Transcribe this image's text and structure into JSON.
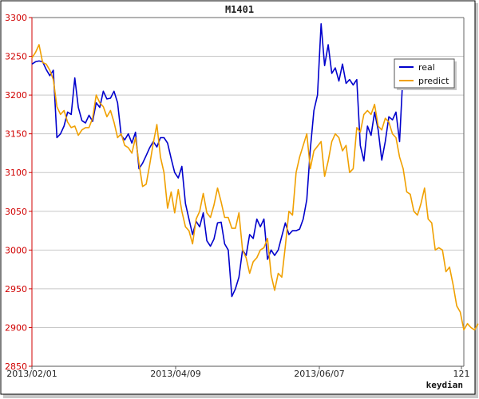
{
  "chart_data": {
    "type": "line",
    "title": "M1401",
    "xlabel": "",
    "ylabel": "",
    "x_ticks": [
      "2013/02/01",
      "2013/04/09",
      "2013/06/07",
      "121"
    ],
    "y_ticks": [
      "3300",
      "3250",
      "3200",
      "3150",
      "3100",
      "3050",
      "3000",
      "2950",
      "2900",
      "2850"
    ],
    "ylim": [
      2850,
      3300
    ],
    "xlim": [
      0,
      121
    ],
    "grid": "horizontal",
    "legend_position": "top-right",
    "footer_text": "keydian",
    "colors": {
      "real": "#0000cc",
      "predict": "#f0a000"
    },
    "series": [
      {
        "name": "real",
        "values": [
          [
            0,
            3240
          ],
          [
            1,
            3243
          ],
          [
            2,
            3244
          ],
          [
            3,
            3243
          ],
          [
            4,
            3233
          ],
          [
            5,
            3225
          ],
          [
            6,
            3232
          ],
          [
            7,
            3145
          ],
          [
            8,
            3150
          ],
          [
            9,
            3160
          ],
          [
            10,
            3178
          ],
          [
            11,
            3175
          ],
          [
            12,
            3222
          ],
          [
            13,
            3184
          ],
          [
            14,
            3167
          ],
          [
            15,
            3164
          ],
          [
            16,
            3174
          ],
          [
            17,
            3166
          ],
          [
            18,
            3190
          ],
          [
            19,
            3184
          ],
          [
            20,
            3205
          ],
          [
            21,
            3195
          ],
          [
            22,
            3196
          ],
          [
            23,
            3205
          ],
          [
            24,
            3190
          ],
          [
            25,
            3148
          ],
          [
            26,
            3142
          ],
          [
            27,
            3150
          ],
          [
            28,
            3138
          ],
          [
            29,
            3152
          ],
          [
            30,
            3105
          ],
          [
            31,
            3112
          ],
          [
            32,
            3122
          ],
          [
            33,
            3132
          ],
          [
            34,
            3140
          ],
          [
            35,
            3133
          ],
          [
            36,
            3145
          ],
          [
            37,
            3145
          ],
          [
            38,
            3138
          ],
          [
            39,
            3118
          ],
          [
            40,
            3100
          ],
          [
            41,
            3093
          ],
          [
            42,
            3108
          ],
          [
            43,
            3060
          ],
          [
            44,
            3040
          ],
          [
            45,
            3020
          ],
          [
            46,
            3037
          ],
          [
            47,
            3030
          ],
          [
            48,
            3048
          ],
          [
            49,
            3012
          ],
          [
            50,
            3005
          ],
          [
            51,
            3014
          ],
          [
            52,
            3035
          ],
          [
            53,
            3036
          ],
          [
            54,
            3008
          ],
          [
            55,
            3000
          ],
          [
            56,
            2940
          ],
          [
            57,
            2950
          ],
          [
            58,
            2965
          ],
          [
            59,
            3000
          ],
          [
            60,
            2993
          ],
          [
            61,
            3020
          ],
          [
            62,
            3015
          ],
          [
            63,
            3040
          ],
          [
            64,
            3030
          ],
          [
            65,
            3040
          ],
          [
            66,
            2988
          ],
          [
            67,
            3000
          ],
          [
            68,
            2993
          ],
          [
            69,
            3000
          ],
          [
            70,
            3018
          ],
          [
            71,
            3035
          ],
          [
            72,
            3020
          ],
          [
            73,
            3025
          ],
          [
            74,
            3025
          ],
          [
            75,
            3027
          ],
          [
            76,
            3040
          ],
          [
            77,
            3065
          ],
          [
            78,
            3130
          ],
          [
            79,
            3180
          ],
          [
            80,
            3200
          ],
          [
            81,
            3292
          ],
          [
            82,
            3238
          ],
          [
            83,
            3265
          ],
          [
            84,
            3228
          ],
          [
            85,
            3235
          ],
          [
            86,
            3218
          ],
          [
            87,
            3240
          ],
          [
            88,
            3215
          ],
          [
            89,
            3220
          ],
          [
            90,
            3213
          ],
          [
            91,
            3220
          ],
          [
            92,
            3135
          ],
          [
            93,
            3115
          ],
          [
            94,
            3160
          ],
          [
            95,
            3148
          ],
          [
            96,
            3178
          ],
          [
            97,
            3155
          ],
          [
            98,
            3116
          ],
          [
            99,
            3140
          ],
          [
            100,
            3172
          ],
          [
            101,
            3168
          ],
          [
            102,
            3178
          ],
          [
            103,
            3140
          ],
          [
            104,
            3232
          ],
          [
            105,
            3243
          ]
        ]
      },
      {
        "name": "predict",
        "values": [
          [
            0,
            3248
          ],
          [
            1,
            3255
          ],
          [
            2,
            3265
          ],
          [
            3,
            3242
          ],
          [
            4,
            3240
          ],
          [
            5,
            3232
          ],
          [
            6,
            3220
          ],
          [
            7,
            3185
          ],
          [
            8,
            3175
          ],
          [
            9,
            3180
          ],
          [
            10,
            3165
          ],
          [
            11,
            3158
          ],
          [
            12,
            3160
          ],
          [
            13,
            3148
          ],
          [
            14,
            3155
          ],
          [
            15,
            3158
          ],
          [
            16,
            3158
          ],
          [
            17,
            3170
          ],
          [
            18,
            3200
          ],
          [
            19,
            3190
          ],
          [
            20,
            3185
          ],
          [
            21,
            3172
          ],
          [
            22,
            3180
          ],
          [
            23,
            3165
          ],
          [
            24,
            3145
          ],
          [
            25,
            3150
          ],
          [
            26,
            3135
          ],
          [
            27,
            3132
          ],
          [
            28,
            3125
          ],
          [
            29,
            3145
          ],
          [
            30,
            3112
          ],
          [
            31,
            3082
          ],
          [
            32,
            3085
          ],
          [
            33,
            3110
          ],
          [
            34,
            3138
          ],
          [
            35,
            3162
          ],
          [
            36,
            3120
          ],
          [
            37,
            3100
          ],
          [
            38,
            3054
          ],
          [
            39,
            3075
          ],
          [
            40,
            3048
          ],
          [
            41,
            3078
          ],
          [
            42,
            3050
          ],
          [
            43,
            3030
          ],
          [
            44,
            3025
          ],
          [
            45,
            3008
          ],
          [
            46,
            3040
          ],
          [
            47,
            3050
          ],
          [
            48,
            3073
          ],
          [
            49,
            3048
          ],
          [
            50,
            3042
          ],
          [
            51,
            3058
          ],
          [
            52,
            3080
          ],
          [
            53,
            3062
          ],
          [
            54,
            3042
          ],
          [
            55,
            3042
          ],
          [
            56,
            3028
          ],
          [
            57,
            3028
          ],
          [
            58,
            3048
          ],
          [
            59,
            3000
          ],
          [
            60,
            2990
          ],
          [
            61,
            2970
          ],
          [
            62,
            2985
          ],
          [
            63,
            2990
          ],
          [
            64,
            3000
          ],
          [
            65,
            3003
          ],
          [
            66,
            3015
          ],
          [
            67,
            2968
          ],
          [
            68,
            2948
          ],
          [
            69,
            2970
          ],
          [
            70,
            2965
          ],
          [
            71,
            3005
          ],
          [
            72,
            3050
          ],
          [
            73,
            3045
          ],
          [
            74,
            3100
          ],
          [
            75,
            3120
          ],
          [
            76,
            3135
          ],
          [
            77,
            3150
          ],
          [
            78,
            3105
          ],
          [
            79,
            3128
          ],
          [
            80,
            3134
          ],
          [
            81,
            3140
          ],
          [
            82,
            3095
          ],
          [
            83,
            3115
          ],
          [
            84,
            3140
          ],
          [
            85,
            3150
          ],
          [
            86,
            3145
          ],
          [
            87,
            3128
          ],
          [
            88,
            3135
          ],
          [
            89,
            3100
          ],
          [
            90,
            3105
          ],
          [
            91,
            3158
          ],
          [
            92,
            3152
          ],
          [
            93,
            3175
          ],
          [
            94,
            3180
          ],
          [
            95,
            3175
          ],
          [
            96,
            3188
          ],
          [
            97,
            3160
          ],
          [
            98,
            3155
          ],
          [
            99,
            3170
          ],
          [
            100,
            3165
          ],
          [
            101,
            3150
          ],
          [
            102,
            3145
          ],
          [
            103,
            3120
          ],
          [
            104,
            3105
          ],
          [
            105,
            3075
          ],
          [
            106,
            3072
          ],
          [
            107,
            3050
          ],
          [
            108,
            3045
          ],
          [
            109,
            3060
          ],
          [
            110,
            3080
          ],
          [
            111,
            3040
          ],
          [
            112,
            3035
          ],
          [
            113,
            3000
          ],
          [
            114,
            3003
          ],
          [
            115,
            3000
          ],
          [
            116,
            2972
          ],
          [
            117,
            2978
          ],
          [
            118,
            2955
          ],
          [
            119,
            2928
          ],
          [
            120,
            2920
          ],
          [
            121,
            2897
          ],
          [
            122,
            2905
          ],
          [
            123,
            2900
          ],
          [
            124,
            2897
          ],
          [
            125,
            2905
          ]
        ]
      }
    ]
  }
}
